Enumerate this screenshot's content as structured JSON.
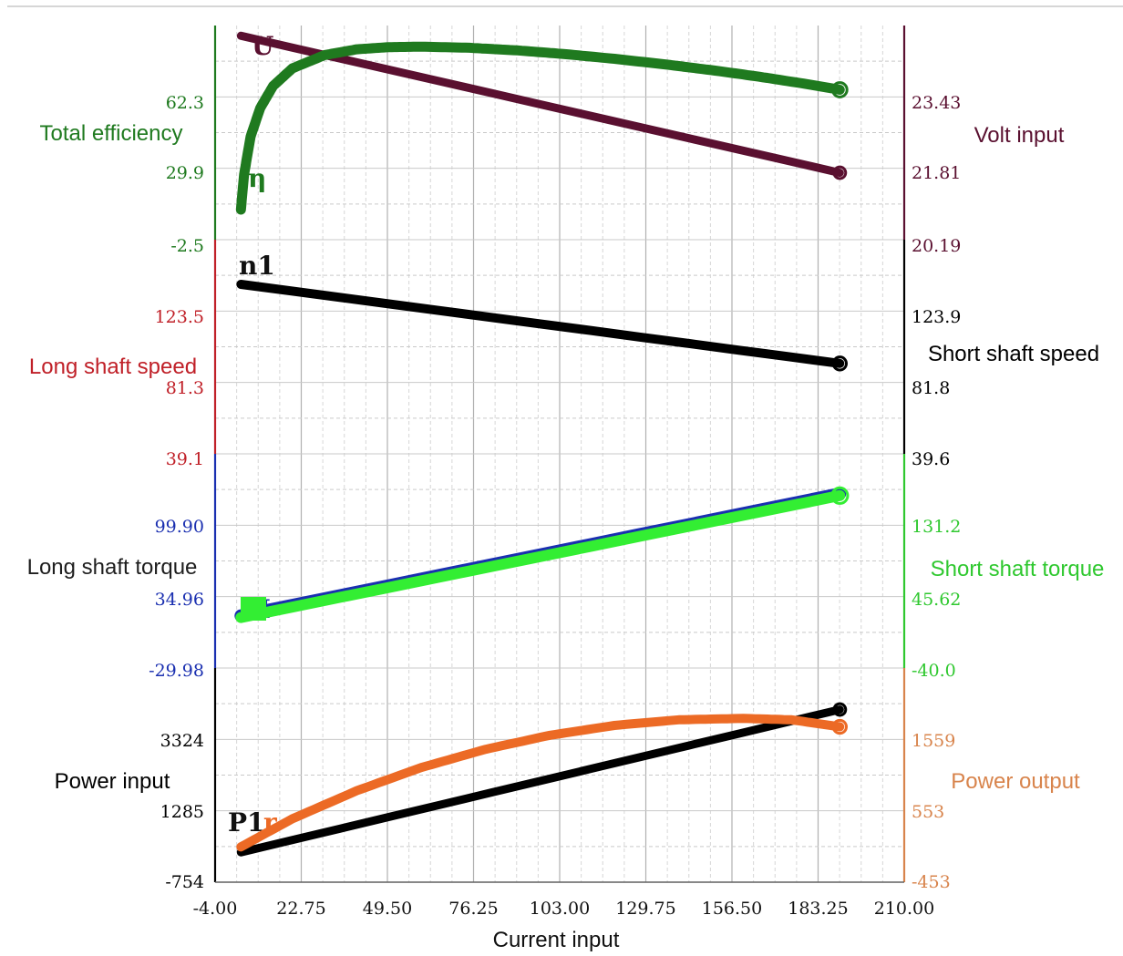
{
  "chart_data": {
    "type": "line",
    "title": "",
    "xlabel": "Current input",
    "x_ticks": [
      "-4.00",
      "22.75",
      "49.50",
      "76.25",
      "103.00",
      "129.75",
      "156.50",
      "183.25",
      "210.00"
    ],
    "xlim": [
      -4,
      210
    ],
    "grid": true,
    "colors": {
      "efficiency": "#1f7a1f",
      "volt": "#5a1030",
      "speed": "#000000",
      "torque": "#33ee33",
      "torque_axis": "#1a2fb0",
      "power_in": "#000000",
      "power_out": "#ec6a25",
      "long_speed_axis": "#c02028",
      "short_torque_axis": "#2fc82f",
      "power_out_axis": "#d8844c"
    },
    "left_axes": [
      {
        "label": "Total efficiency",
        "ticks": [
          "62.3",
          "29.9",
          "-2.5"
        ],
        "ylim": [
          -2.5,
          94.7
        ],
        "color": "#1f7a1f"
      },
      {
        "label": "Long shaft speed",
        "ticks": [
          "123.5",
          "81.3",
          "39.1"
        ],
        "ylim": [
          39.1,
          165.7
        ],
        "color": "#c02028"
      },
      {
        "label": "Long shaft torque",
        "ticks": [
          "99.90",
          "34.96",
          "-29.98"
        ],
        "ylim": [
          -29.98,
          164.84
        ],
        "color": "#1a2fb0"
      },
      {
        "label": "Power input",
        "ticks": [
          "3324",
          "1285",
          "-754"
        ],
        "ylim": [
          -754,
          5363
        ],
        "color": "#000000"
      }
    ],
    "right_axes": [
      {
        "label": "Volt input",
        "ticks": [
          "23.43",
          "21.81",
          "20.19"
        ],
        "ylim": [
          20.19,
          25.05
        ],
        "color": "#5a1030"
      },
      {
        "label": "Short shaft speed",
        "ticks": [
          "123.9",
          "81.8",
          "39.6"
        ],
        "ylim": [
          39.6,
          166.1
        ],
        "color": "#000000"
      },
      {
        "label": "Short shaft torque",
        "ticks": [
          "131.2",
          "45.62",
          "-40.0"
        ],
        "ylim": [
          -40.0,
          216.8
        ],
        "color": "#2fc82f"
      },
      {
        "label": "Power output",
        "ticks": [
          "1559",
          "553",
          "-453"
        ],
        "ylim": [
          -453,
          2565
        ],
        "color": "#d8844c"
      }
    ],
    "series": [
      {
        "name": "U",
        "axis": "Volt input",
        "x": [
          4,
          190
        ],
        "y": [
          24.95,
          21.85
        ]
      },
      {
        "name": "η",
        "axis": "Total efficiency",
        "x": [
          4,
          5,
          7,
          10,
          14,
          20,
          30,
          40,
          50,
          60,
          75,
          90,
          105,
          120,
          135,
          150,
          165,
          180,
          190
        ],
        "y": [
          14,
          30,
          47,
          60,
          70,
          78,
          84,
          86.6,
          87.6,
          87.8,
          87.3,
          86.1,
          84.4,
          82.3,
          79.9,
          77.2,
          74.2,
          70.8,
          68.3
        ]
      },
      {
        "name": "n1",
        "axis": "Long shaft speed",
        "x": [
          4,
          190
        ],
        "y": [
          143,
          96
        ]
      },
      {
        "name": "M",
        "axis": "Long shaft torque",
        "x": [
          4,
          190
        ],
        "y": [
          18,
          128
        ]
      },
      {
        "name": "P1",
        "axis": "Power input",
        "x": [
          4,
          190
        ],
        "y": [
          110,
          4230
        ]
      },
      {
        "name": "P2",
        "axis": "Power output",
        "x": [
          4,
          20,
          40,
          60,
          80,
          100,
          120,
          140,
          160,
          175,
          190
        ],
        "y": [
          50,
          450,
          850,
          1180,
          1440,
          1640,
          1780,
          1860,
          1880,
          1860,
          1760
        ]
      }
    ],
    "curve_labels": [
      "U",
      "η",
      "n1",
      "M",
      "P1",
      "P2"
    ]
  }
}
